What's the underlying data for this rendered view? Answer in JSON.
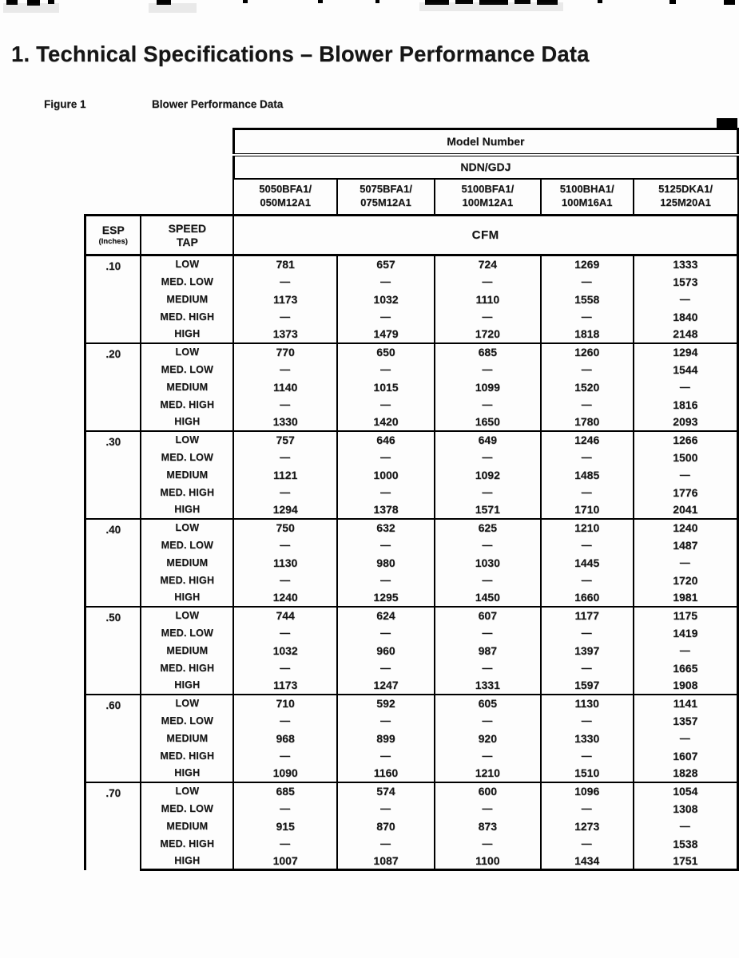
{
  "colors": {
    "ink": "#161616",
    "paper": "#fdfdfd"
  },
  "page": {
    "heading": "1. Technical  Specifications – Blower Performance Data",
    "figure_label": "Figure 1",
    "figure_caption": "Blower Performance Data"
  },
  "table": {
    "model_number_header": "Model Number",
    "family_header": "NDN/GDJ",
    "cfm_header": "CFM",
    "esp_header": "ESP",
    "esp_subheader": "(Inches)",
    "speed_line1": "SPEED",
    "speed_line2": "TAP",
    "models": [
      [
        "5050BFA1/",
        "050M12A1"
      ],
      [
        "5075BFA1/",
        "075M12A1"
      ],
      [
        "5100BFA1/",
        "100M12A1"
      ],
      [
        "5100BHA1/",
        "100M16A1"
      ],
      [
        "5125DKA1/",
        "125M20A1"
      ]
    ],
    "groups": [
      {
        "esp": ".10",
        "rows": [
          {
            "speed": "LOW",
            "values": [
              "781",
              "657",
              "724",
              "1269",
              "1333"
            ]
          },
          {
            "speed": "MED. LOW",
            "values": [
              "—",
              "—",
              "—",
              "—",
              "1573"
            ]
          },
          {
            "speed": "MEDIUM",
            "values": [
              "1173",
              "1032",
              "1110",
              "1558",
              "—"
            ]
          },
          {
            "speed": "MED. HIGH",
            "values": [
              "—",
              "—",
              "—",
              "—",
              "1840"
            ]
          },
          {
            "speed": "HIGH",
            "values": [
              "1373",
              "1479",
              "1720",
              "1818",
              "2148"
            ]
          }
        ]
      },
      {
        "esp": ".20",
        "rows": [
          {
            "speed": "LOW",
            "values": [
              "770",
              "650",
              "685",
              "1260",
              "1294"
            ]
          },
          {
            "speed": "MED. LOW",
            "values": [
              "—",
              "—",
              "—",
              "—",
              "1544"
            ]
          },
          {
            "speed": "MEDIUM",
            "values": [
              "1140",
              "1015",
              "1099",
              "1520",
              "—"
            ]
          },
          {
            "speed": "MED. HIGH",
            "values": [
              "—",
              "—",
              "—",
              "—",
              "1816"
            ]
          },
          {
            "speed": "HIGH",
            "values": [
              "1330",
              "1420",
              "1650",
              "1780",
              "2093"
            ]
          }
        ]
      },
      {
        "esp": ".30",
        "rows": [
          {
            "speed": "LOW",
            "values": [
              "757",
              "646",
              "649",
              "1246",
              "1266"
            ]
          },
          {
            "speed": "MED. LOW",
            "values": [
              "—",
              "—",
              "—",
              "—",
              "1500"
            ]
          },
          {
            "speed": "MEDIUM",
            "values": [
              "1121",
              "1000",
              "1092",
              "1485",
              "—"
            ]
          },
          {
            "speed": "MED. HIGH",
            "values": [
              "—",
              "—",
              "—",
              "—",
              "1776"
            ]
          },
          {
            "speed": "HIGH",
            "values": [
              "1294",
              "1378",
              "1571",
              "1710",
              "2041"
            ]
          }
        ]
      },
      {
        "esp": ".40",
        "rows": [
          {
            "speed": "LOW",
            "values": [
              "750",
              "632",
              "625",
              "1210",
              "1240"
            ]
          },
          {
            "speed": "MED. LOW",
            "values": [
              "—",
              "—",
              "—",
              "—",
              "1487"
            ]
          },
          {
            "speed": "MEDIUM",
            "values": [
              "1130",
              "980",
              "1030",
              "1445",
              "—"
            ]
          },
          {
            "speed": "MED. HIGH",
            "values": [
              "—",
              "—",
              "—",
              "—",
              "1720"
            ]
          },
          {
            "speed": "HIGH",
            "values": [
              "1240",
              "1295",
              "1450",
              "1660",
              "1981"
            ]
          }
        ]
      },
      {
        "esp": ".50",
        "rows": [
          {
            "speed": "LOW",
            "values": [
              "744",
              "624",
              "607",
              "1177",
              "1175"
            ]
          },
          {
            "speed": "MED. LOW",
            "values": [
              "—",
              "—",
              "—",
              "—",
              "1419"
            ]
          },
          {
            "speed": "MEDIUM",
            "values": [
              "1032",
              "960",
              "987",
              "1397",
              "—"
            ]
          },
          {
            "speed": "MED. HIGH",
            "values": [
              "—",
              "—",
              "—",
              "—",
              "1665"
            ]
          },
          {
            "speed": "HIGH",
            "values": [
              "1173",
              "1247",
              "1331",
              "1597",
              "1908"
            ]
          }
        ]
      },
      {
        "esp": ".60",
        "rows": [
          {
            "speed": "LOW",
            "values": [
              "710",
              "592",
              "605",
              "1130",
              "1141"
            ]
          },
          {
            "speed": "MED. LOW",
            "values": [
              "—",
              "—",
              "—",
              "—",
              "1357"
            ]
          },
          {
            "speed": "MEDIUM",
            "values": [
              "968",
              "899",
              "920",
              "1330",
              "—"
            ]
          },
          {
            "speed": "MED. HIGH",
            "values": [
              "—",
              "—",
              "—",
              "—",
              "1607"
            ]
          },
          {
            "speed": "HIGH",
            "values": [
              "1090",
              "1160",
              "1210",
              "1510",
              "1828"
            ]
          }
        ]
      },
      {
        "esp": ".70",
        "rows": [
          {
            "speed": "LOW",
            "values": [
              "685",
              "574",
              "600",
              "1096",
              "1054"
            ]
          },
          {
            "speed": "MED. LOW",
            "values": [
              "—",
              "—",
              "—",
              "—",
              "1308"
            ]
          },
          {
            "speed": "MEDIUM",
            "values": [
              "915",
              "870",
              "873",
              "1273",
              "—"
            ]
          },
          {
            "speed": "MED. HIGH",
            "values": [
              "—",
              "—",
              "—",
              "—",
              "1538"
            ]
          },
          {
            "speed": "HIGH",
            "values": [
              "1007",
              "1087",
              "1100",
              "1434",
              "1751"
            ]
          }
        ]
      }
    ]
  }
}
